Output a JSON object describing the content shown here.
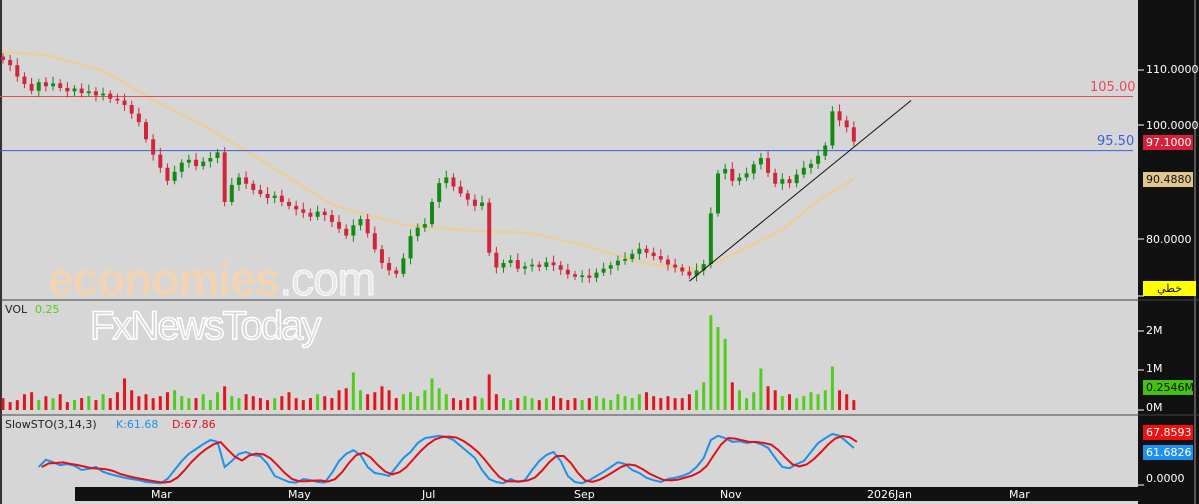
{
  "watermarks": {
    "primary": "economies",
    "primary_suffix": ".com",
    "secondary": "FxNewsToday"
  },
  "volume_panel": {
    "label": "VOL",
    "value": "0.25"
  },
  "stoch_panel": {
    "label": "SlowSTO(3,14,3)",
    "k_label": "K:61.68",
    "d_label": "D:67.86"
  },
  "price_axis": {
    "ticks": [
      "110.0000",
      "100.0000",
      "80.0000"
    ],
    "last_price": "97.1000",
    "ma_value": "90.4880",
    "scale_button": "خطي"
  },
  "volume_axis": {
    "ticks": [
      "2M",
      "1M",
      "0M"
    ],
    "last_volume": "0.2546M"
  },
  "stoch_axis": {
    "ticks": [
      "0.0000"
    ],
    "d_value": "67.8593",
    "k_value": "61.6826"
  },
  "date_axis": {
    "labels": [
      "Mar",
      "May",
      "Jul",
      "Sep",
      "Nov",
      "2026Jan",
      "Mar"
    ]
  },
  "levels": [
    {
      "value": 105.0,
      "label": "105.00",
      "color": "#e8485a"
    },
    {
      "value": 95.5,
      "label": "95.50",
      "color": "#3a5fd8"
    }
  ],
  "colors": {
    "up": "#138a13",
    "down": "#d0263c",
    "vol_up": "#52cc1a",
    "vol_down": "#e0161c",
    "ma": "#e8cf9c",
    "k": "#1e90e8",
    "d": "#e0101a",
    "axis_bg": "#111111"
  },
  "chart_data": {
    "type": "candlestick",
    "closes": [
      111.4,
      110.5,
      108.5,
      107.2,
      106,
      107.5,
      106.8,
      107.3,
      106.5,
      105.9,
      106.4,
      105.6,
      105.9,
      105.2,
      105.5,
      104.6,
      104.3,
      103.5,
      102,
      100.5,
      97.5,
      94.8,
      92.5,
      90.2,
      91.8,
      93.4,
      93.9,
      92.8,
      93.6,
      94.2,
      95.2,
      86.5,
      89.5,
      90.8,
      89.7,
      88.6,
      87.9,
      87.2,
      87.6,
      86.5,
      85.8,
      85.2,
      84.6,
      83.9,
      84.8,
      84.2,
      83,
      81.8,
      80.6,
      82.4,
      83.5,
      81,
      78.2,
      75.8,
      74.5,
      73.9,
      76.6,
      80.5,
      82,
      82.6,
      86.5,
      89.8,
      90.8,
      89.2,
      88,
      86.9,
      85.8,
      86.4,
      77.6,
      75,
      75.8,
      76.3,
      74.8,
      75.2,
      75.5,
      75.1,
      75.9,
      75.4,
      74.6,
      73.8,
      73.4,
      73.6,
      73.2,
      74.1,
      74.8,
      75.4,
      76.2,
      76.5,
      77.4,
      78.3,
      77.6,
      77,
      76.4,
      75.5,
      75,
      74.3,
      73.6,
      74.5,
      75.6,
      84.5,
      91.5,
      92.3,
      90.2,
      90.8,
      91.5,
      93.1,
      94.2,
      91.6,
      89.7,
      90.5,
      89.8,
      91.3,
      92.5,
      93.2,
      94.6,
      96.4,
      102.4,
      100.8,
      99.6,
      97.1
    ],
    "first_open": 112.0,
    "moving_average": [
      [
        0,
        112.8
      ],
      [
        6,
        112.3
      ],
      [
        14,
        109.6
      ],
      [
        21,
        104.4
      ],
      [
        28,
        100
      ],
      [
        36,
        93.9
      ],
      [
        46,
        86
      ],
      [
        56,
        82.5
      ],
      [
        64,
        81.6
      ],
      [
        74,
        81
      ],
      [
        81,
        79
      ],
      [
        89,
        76
      ],
      [
        96,
        74.6
      ],
      [
        100,
        76
      ],
      [
        109,
        81.6
      ],
      [
        114,
        86.8
      ],
      [
        119,
        90.5
      ]
    ],
    "volume": [
      0.3,
      0.2,
      0.25,
      0.4,
      0.45,
      0.25,
      0.35,
      0.3,
      0.4,
      0.2,
      0.25,
      0.3,
      0.35,
      0.25,
      0.4,
      0.3,
      0.45,
      0.8,
      0.5,
      0.35,
      0.4,
      0.3,
      0.35,
      0.45,
      0.5,
      0.35,
      0.3,
      0.3,
      0.4,
      0.25,
      0.45,
      0.6,
      0.35,
      0.3,
      0.4,
      0.35,
      0.3,
      0.25,
      0.3,
      0.35,
      0.45,
      0.3,
      0.25,
      0.3,
      0.4,
      0.35,
      0.3,
      0.5,
      0.55,
      0.95,
      0.5,
      0.4,
      0.45,
      0.6,
      0.5,
      0.3,
      0.4,
      0.45,
      0.35,
      0.5,
      0.8,
      0.55,
      0.4,
      0.3,
      0.25,
      0.3,
      0.35,
      0.3,
      0.9,
      0.4,
      0.3,
      0.25,
      0.3,
      0.35,
      0.3,
      0.25,
      0.3,
      0.35,
      0.3,
      0.25,
      0.3,
      0.25,
      0.3,
      0.35,
      0.3,
      0.25,
      0.4,
      0.35,
      0.3,
      0.4,
      0.45,
      0.35,
      0.3,
      0.35,
      0.3,
      0.3,
      0.4,
      0.5,
      0.7,
      2.4,
      2.1,
      1.8,
      0.7,
      0.5,
      0.3,
      0.45,
      1.05,
      0.6,
      0.5,
      0.35,
      0.4,
      0.3,
      0.35,
      0.45,
      0.4,
      0.5,
      1.1,
      0.5,
      0.4,
      0.25
    ],
    "stoch_k": [
      null,
      null,
      null,
      null,
      null,
      30,
      42,
      38,
      33,
      35,
      32,
      25,
      27,
      30,
      22,
      18,
      15,
      12,
      10,
      8,
      5,
      4,
      3,
      10,
      25,
      40,
      52,
      60,
      68,
      75,
      72,
      30,
      40,
      52,
      55,
      50,
      48,
      35,
      15,
      10,
      5,
      4,
      10,
      8,
      5,
      4,
      20,
      40,
      52,
      58,
      50,
      30,
      20,
      18,
      15,
      30,
      45,
      55,
      70,
      78,
      80,
      82,
      80,
      75,
      65,
      55,
      45,
      25,
      10,
      5,
      3,
      10,
      5,
      8,
      25,
      40,
      50,
      55,
      40,
      15,
      5,
      3,
      8,
      15,
      22,
      30,
      38,
      35,
      25,
      20,
      12,
      8,
      5,
      10,
      12,
      15,
      20,
      30,
      45,
      75,
      82,
      78,
      72,
      73,
      70,
      72,
      68,
      62,
      45,
      30,
      28,
      35,
      40,
      55,
      70,
      78,
      85,
      82,
      72,
      61.7
    ],
    "trendline": [
      [
        96,
        72.6
      ],
      [
        127,
        104.3
      ]
    ],
    "price_ylim": [
      70,
      115
    ],
    "stoch_ylim": [
      0,
      100
    ]
  }
}
